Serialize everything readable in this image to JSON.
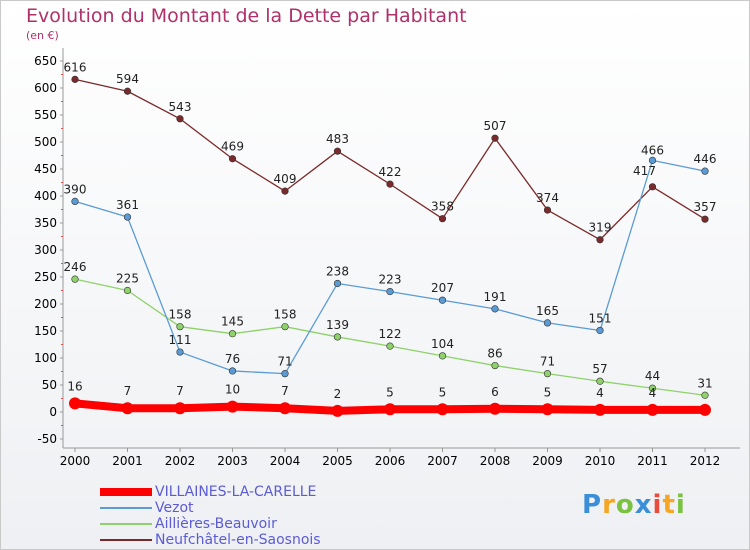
{
  "chart_data": {
    "type": "line",
    "title": "Evolution du Montant de la Dette par Habitant",
    "subtitle": "(en €)",
    "x": [
      "2000",
      "2001",
      "2002",
      "2003",
      "2004",
      "2005",
      "2006",
      "2007",
      "2008",
      "2009",
      "2010",
      "2011",
      "2012"
    ],
    "yticks": [
      "650",
      "600",
      "550",
      "500",
      "450",
      "400",
      "350",
      "300",
      "250",
      "200",
      "150",
      "100",
      "50",
      "0",
      "-50"
    ],
    "ylim": [
      -50,
      650
    ],
    "grid": false,
    "legend_position": "bottom-left",
    "series": [
      {
        "name": "VILLAINES-LA-CARELLE",
        "color": "#ff0000",
        "values": [
          16,
          7,
          7,
          10,
          7,
          2,
          5,
          5,
          6,
          5,
          4,
          4,
          4
        ],
        "labels": [
          "16",
          "7",
          "7",
          "10",
          "7",
          "2",
          "5",
          "5",
          "6",
          "5",
          "4",
          "4",
          ""
        ]
      },
      {
        "name": "Vezot",
        "color": "#5b9bd5",
        "values": [
          390,
          361,
          111,
          76,
          71,
          238,
          223,
          207,
          191,
          165,
          151,
          466,
          446
        ],
        "labels": [
          "390",
          "361",
          "111",
          "76",
          "71",
          "238",
          "223",
          "207",
          "191",
          "165",
          "151",
          "466",
          "446"
        ]
      },
      {
        "name": "Aillières-Beauvoir",
        "color": "#8fd16a",
        "values": [
          246,
          225,
          158,
          145,
          158,
          139,
          122,
          104,
          86,
          71,
          57,
          44,
          31
        ],
        "labels": [
          "246",
          "225",
          "158",
          "145",
          "158",
          "139",
          "122",
          "104",
          "86",
          "71",
          "57",
          "44",
          "31"
        ]
      },
      {
        "name": "Neufchâtel-en-Saosnois",
        "color": "#7a2a2a",
        "values": [
          616,
          594,
          543,
          469,
          409,
          483,
          422,
          358,
          507,
          374,
          319,
          417,
          357
        ],
        "labels": [
          "616",
          "594",
          "543",
          "469",
          "409",
          "483",
          "422",
          "358",
          "507",
          "374",
          "319",
          "417",
          "357"
        ]
      }
    ]
  },
  "logo": {
    "letters": [
      {
        "ch": "P",
        "color": "#3a8fd8"
      },
      {
        "ch": "r",
        "color": "#f5a623"
      },
      {
        "ch": "o",
        "color": "#7cc242"
      },
      {
        "ch": "x",
        "color": "#3a8fd8"
      },
      {
        "ch": "i",
        "color": "#e94b3c"
      },
      {
        "ch": "t",
        "color": "#f5a623"
      },
      {
        "ch": "i",
        "color": "#7cc242"
      }
    ]
  }
}
